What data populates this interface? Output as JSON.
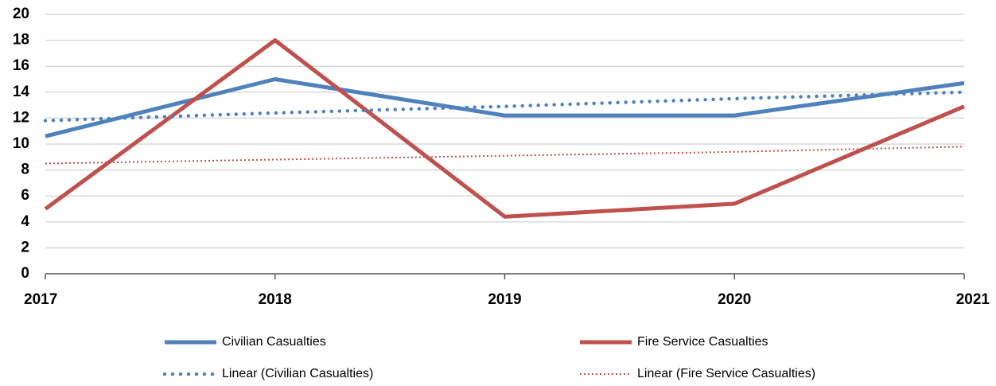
{
  "chart_data": {
    "type": "line",
    "categories": [
      "2017",
      "2018",
      "2019",
      "2020",
      "2021"
    ],
    "series": [
      {
        "name": "Civilian Casualties",
        "color": "#4f81bd",
        "style": "solid",
        "values": [
          10.6,
          15.0,
          12.2,
          12.2,
          14.7
        ]
      },
      {
        "name": "Fire Service Casualties",
        "color": "#c0504d",
        "style": "solid",
        "values": [
          5.0,
          18.0,
          4.4,
          5.4,
          12.9
        ]
      },
      {
        "name": "Linear (Civilian Casualties)",
        "color": "#4f81bd",
        "style": "dotted",
        "values": [
          11.8,
          12.4,
          12.9,
          13.5,
          14.0
        ]
      },
      {
        "name": "Linear (Fire Service Casualties)",
        "color": "#c0504d",
        "style": "dotted-thin",
        "values": [
          8.5,
          8.8,
          9.1,
          9.4,
          9.8
        ]
      }
    ],
    "ylim": [
      0,
      20
    ],
    "yticks": [
      0,
      2,
      4,
      6,
      8,
      10,
      12,
      14,
      16,
      18,
      20
    ],
    "grid": true,
    "legend": "bottom"
  }
}
